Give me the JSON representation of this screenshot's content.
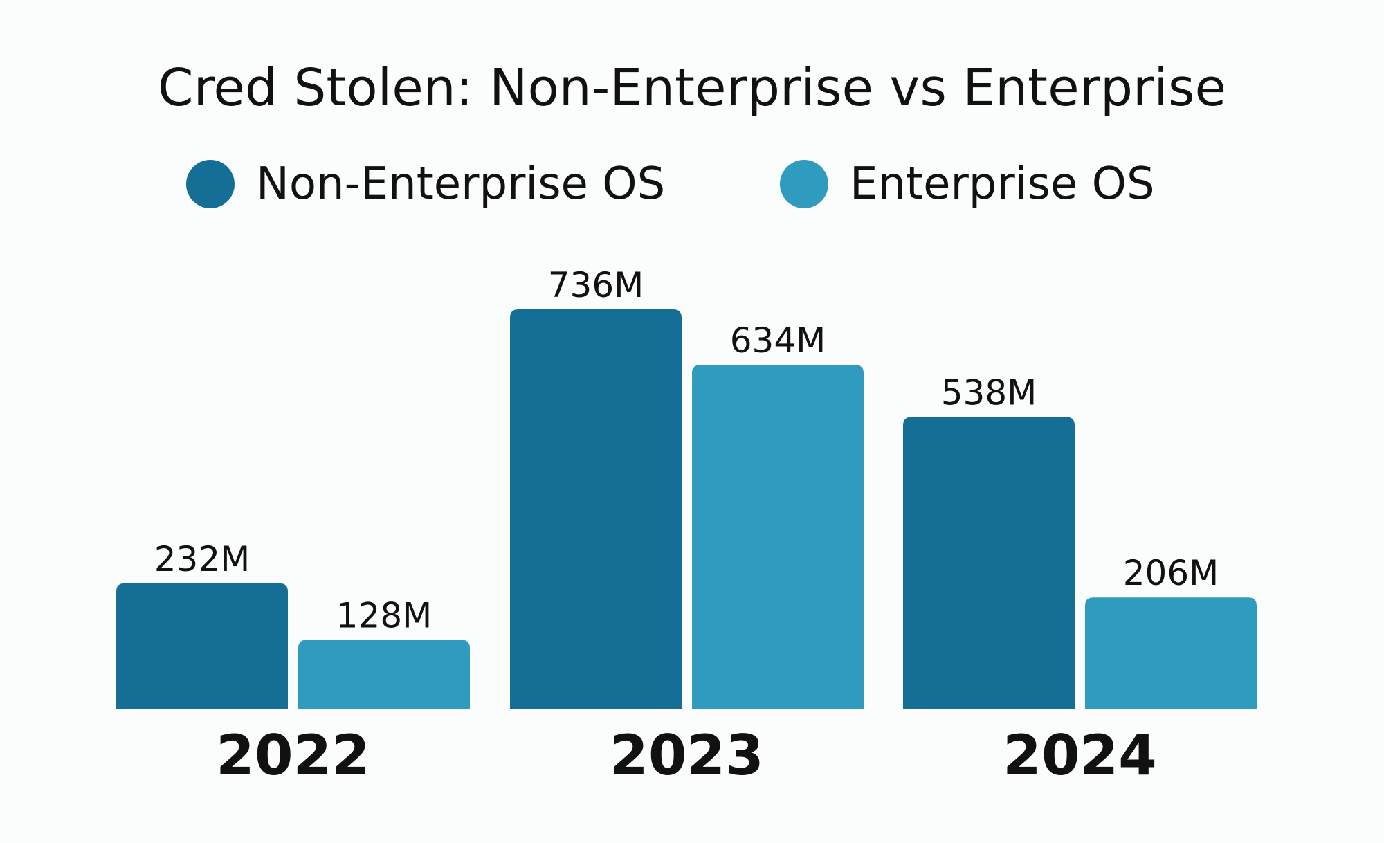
{
  "chart_data": {
    "type": "bar",
    "title": "Cred Stolen: Non-Enterprise vs Enterprise",
    "categories": [
      "2022",
      "2023",
      "2024"
    ],
    "series": [
      {
        "name": "Non-Enterprise OS",
        "values": [
          232,
          736,
          538
        ],
        "labels": [
          "232M",
          "736M",
          "538M"
        ],
        "color": "#156e96"
      },
      {
        "name": "Enterprise OS",
        "values": [
          128,
          634,
          206
        ],
        "labels": [
          "128M",
          "634M",
          "206M"
        ],
        "color": "#2e9bbf"
      }
    ],
    "ylim": [
      0,
      736
    ],
    "grid": false,
    "legend": "top-center"
  }
}
